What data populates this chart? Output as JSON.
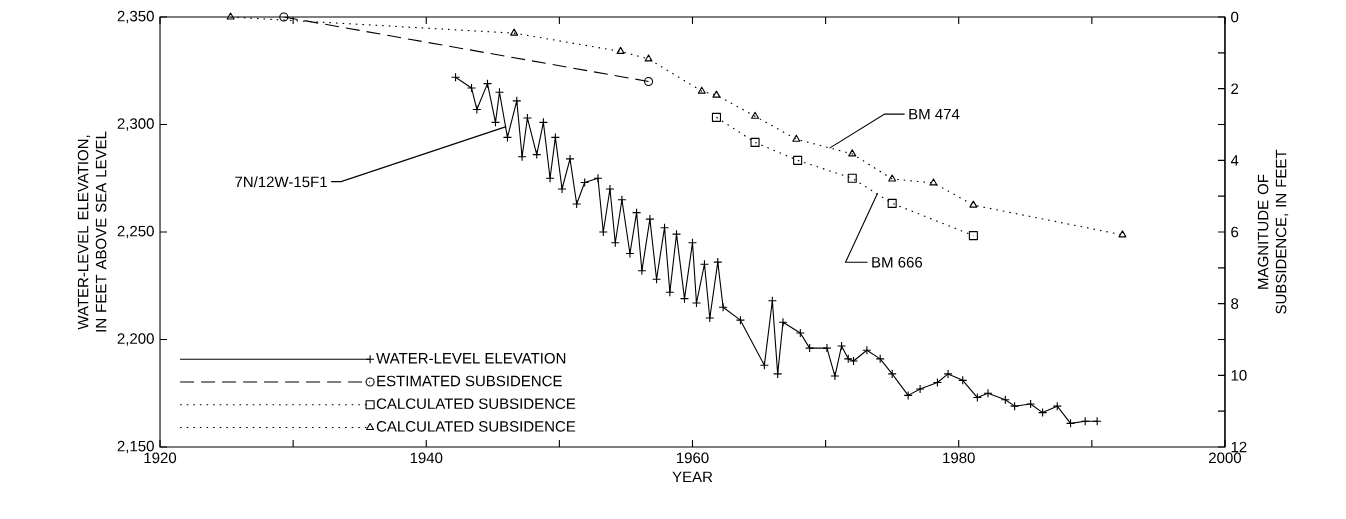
{
  "chart_data": {
    "type": "line",
    "xlabel": "YEAR",
    "ylabel": "WATER-LEVEL ELEVATION, IN FEET ABOVE SEA LEVEL",
    "y2label": "MAGNITUDE OF SUBSIDENCE, IN FEET",
    "xlim": [
      1920,
      2000
    ],
    "xticks": [
      1920,
      {
        "value": 1930,
        "label": null
      },
      1940,
      {
        "value": 1950,
        "label": null
      },
      1960,
      {
        "value": 1970,
        "label": null
      },
      1980,
      {
        "value": 1990,
        "label": null
      },
      2000
    ],
    "ylim": [
      2150,
      2350
    ],
    "yticks": [
      {
        "value": 2150,
        "label": "2,150"
      },
      {
        "value": 2200,
        "label": "2,200"
      },
      {
        "value": 2250,
        "label": "2,250"
      },
      {
        "value": 2300,
        "label": "2,300"
      },
      {
        "value": 2350,
        "label": "2,350"
      }
    ],
    "y2lim": [
      12,
      0
    ],
    "y2ticks": [
      0,
      {
        "value": 1,
        "label": null
      },
      2,
      {
        "value": 3,
        "label": null
      },
      4,
      {
        "value": 5,
        "label": null
      },
      6,
      {
        "value": 7,
        "label": null
      },
      8,
      {
        "value": 9,
        "label": null
      },
      10,
      {
        "value": 11,
        "label": null
      },
      12
    ],
    "legend": "bottom left",
    "grid": false,
    "series": [
      {
        "name": "WATER-LEVEL ELEVATION",
        "color": "#000000",
        "marker": "cross",
        "line_style": "solid",
        "x": [
          1942.2,
          1943.4,
          1943.8,
          1944.6,
          1945.2,
          1945.5,
          1946.1,
          1946.8,
          1947.2,
          1947.6,
          1948.3,
          1948.8,
          1949.3,
          1949.7,
          1950.2,
          1950.8,
          1951.3,
          1951.9,
          1952.9,
          1953.3,
          1953.8,
          1954.2,
          1954.7,
          1955.3,
          1955.8,
          1956.2,
          1956.8,
          1957.3,
          1957.9,
          1958.3,
          1958.8,
          1959.4,
          1960.0,
          1960.3,
          1960.9,
          1961.3,
          1961.9,
          1962.3,
          1963.6,
          1965.4,
          1966.0,
          1966.4,
          1966.8,
          1968.1,
          1968.8,
          1970.1,
          1970.7,
          1971.2,
          1971.7,
          1972.1,
          1973.1,
          1974.1,
          1975.0,
          1976.2,
          1977.1,
          1978.4,
          1979.2,
          1980.3,
          1981.4,
          1982.2,
          1983.5,
          1984.2,
          1985.4,
          1986.3,
          1987.4,
          1988.4,
          1989.5,
          1990.4
        ],
        "values": [
          2322,
          2317,
          2307,
          2319,
          2301,
          2315,
          2294,
          2311,
          2285,
          2303,
          2286,
          2301,
          2275,
          2294,
          2270,
          2284,
          2263,
          2273,
          2275,
          2250,
          2270,
          2245,
          2265,
          2240,
          2259,
          2232,
          2256,
          2228,
          2252,
          2222,
          2249,
          2219,
          2245,
          2217,
          2235,
          2210,
          2236,
          2215,
          2209,
          2188,
          2218,
          2184,
          2208,
          2203,
          2196,
          2196,
          2183,
          2197,
          2191,
          2190,
          2195,
          2191,
          2184,
          2174,
          2177,
          2180,
          2184,
          2181,
          2173,
          2175,
          2172,
          2169,
          2170,
          2166,
          2169,
          2161,
          2162,
          2162
        ]
      },
      {
        "name": "ESTIMATED SUBSIDENCE",
        "color": "#000000",
        "marker": "circle",
        "line_style": "dashed",
        "axis": "y2",
        "x": [
          1929.3,
          1956.7
        ],
        "values": [
          0,
          1.8
        ]
      },
      {
        "name": "CALCULATED SUBSIDENCE",
        "color": "#000000",
        "marker": "square",
        "line_style": "dotted",
        "axis": "y2",
        "x": [
          1961.8,
          1964.7,
          1967.9,
          1972.0,
          1975.0,
          1981.1
        ],
        "values": [
          2.8,
          3.5,
          4.0,
          4.5,
          5.2,
          6.1
        ]
      },
      {
        "name": "CALCULATED SUBSIDENCE",
        "color": "#000000",
        "marker": "triangle",
        "line_style": "dotted",
        "axis": "y2",
        "x": [
          1925.3,
          1946.6,
          1954.6,
          1956.7,
          1960.7,
          1961.8,
          1964.7,
          1967.8,
          1972.0,
          1975.0,
          1978.1,
          1981.1,
          1992.3
        ],
        "values": [
          0,
          0.45,
          0.96,
          1.17,
          2.07,
          2.18,
          2.77,
          3.41,
          3.82,
          4.52,
          4.63,
          5.25,
          6.08
        ]
      }
    ],
    "annotations": [
      {
        "text": "7N/12W-15F1",
        "x": 1946.0,
        "y": 2299
      },
      {
        "text": "BM 474",
        "x": 1970.3,
        "y": 2289
      },
      {
        "text": "BM 666",
        "x": 1973.9,
        "y": 2268
      }
    ]
  }
}
